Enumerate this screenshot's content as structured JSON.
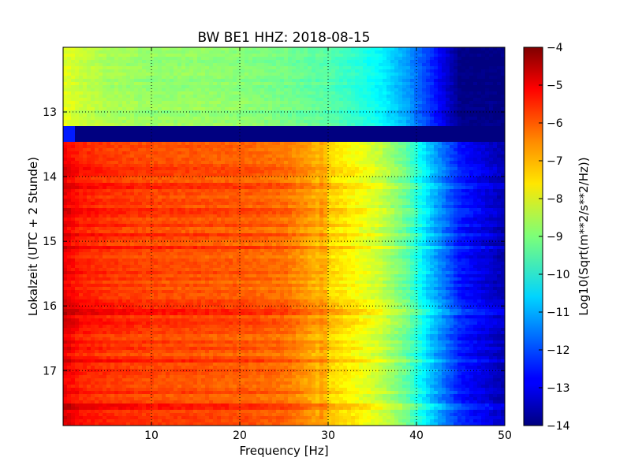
{
  "chart_data": {
    "type": "heatmap",
    "title": "BW BE1 HHZ: 2018-08-15",
    "xlabel": "Frequency [Hz]",
    "ylabel": "Lokalzeit (UTC + 2 Stunde)",
    "xlim": [
      0,
      50
    ],
    "ylim": [
      17.85,
      12.0
    ],
    "xticks": [
      10,
      20,
      30,
      40,
      50
    ],
    "xtick_labels": [
      "10",
      "20",
      "30",
      "40",
      "50"
    ],
    "yticks": [
      13,
      14,
      15,
      16,
      17
    ],
    "ytick_labels": [
      "13",
      "14",
      "15",
      "16",
      "17"
    ],
    "grid": true,
    "colorbar": {
      "label": "Log10(Sqrt(m**2/s**2/Hz))",
      "range": [
        -14,
        -4
      ],
      "ticks": [
        -4,
        -5,
        -6,
        -7,
        -8,
        -9,
        -10,
        -11,
        -12,
        -13,
        -14
      ],
      "tick_labels": [
        "−4",
        "−5",
        "−6",
        "−7",
        "−8",
        "−9",
        "−10",
        "−11",
        "−12",
        "−13",
        "−14"
      ],
      "colormap": "jet"
    },
    "spectrum_profiles": {
      "frequency_hz": [
        0,
        2,
        5,
        10,
        15,
        20,
        25,
        28,
        30,
        33,
        36,
        39,
        42,
        45,
        50
      ],
      "day_12_to_13_15_log10": [
        -8.0,
        -8.3,
        -8.6,
        -8.8,
        -8.8,
        -8.9,
        -9.1,
        -9.3,
        -9.4,
        -9.8,
        -10.3,
        -11.2,
        -12.5,
        -14.0,
        -14.0
      ],
      "gap_13_2_to_13_45_log10": -14.0,
      "day_13_45_to_17_85_log10": [
        -5.0,
        -5.5,
        -5.7,
        -5.9,
        -6.0,
        -6.1,
        -6.3,
        -6.8,
        -7.3,
        -7.7,
        -8.3,
        -9.3,
        -11.0,
        -12.5,
        -13.5
      ]
    },
    "highlighted_times": [
      13.2,
      13.45,
      14.15,
      14.5,
      14.9,
      15.1,
      16.1,
      16.25,
      16.85,
      17.55
    ]
  }
}
